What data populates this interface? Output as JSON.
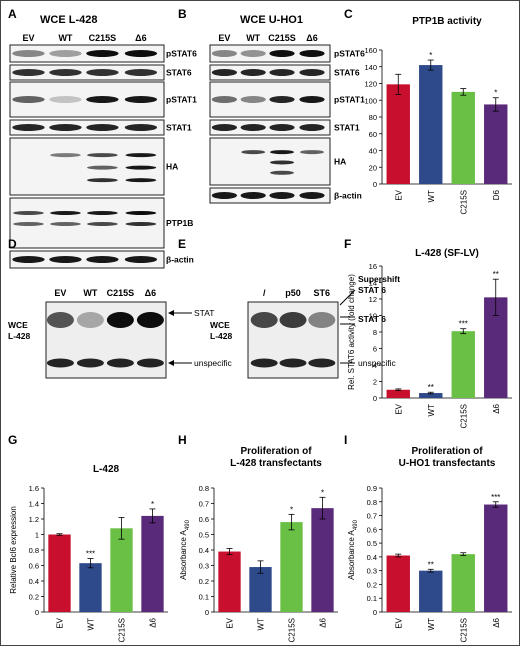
{
  "panels": {
    "A": {
      "letter": "A",
      "title": "WCE L-428",
      "lanes": [
        "EV",
        "WT",
        "C215S",
        "Δ6"
      ],
      "blots": [
        "pSTAT6",
        "STAT6",
        "pSTAT1",
        "STAT1",
        "HA",
        "PTP1B",
        "β-actin"
      ]
    },
    "B": {
      "letter": "B",
      "title": "WCE U-HO1",
      "lanes": [
        "EV",
        "WT",
        "C215S",
        "Δ6"
      ],
      "blots": [
        "pSTAT6",
        "STAT6",
        "pSTAT1",
        "STAT1",
        "HA",
        "β-actin"
      ]
    },
    "D": {
      "letter": "D",
      "lanes": [
        "EV",
        "WT",
        "C215S",
        "Δ6"
      ],
      "side_label": [
        "WCE",
        "L-428"
      ],
      "arrows": [
        "STAT",
        "unspecific"
      ]
    },
    "E": {
      "letter": "E",
      "lanes": [
        "/",
        "p50",
        "ST6"
      ],
      "side_label": [
        "WCE",
        "L-428"
      ],
      "arrows": [
        "Supershift",
        "STAT 6",
        "STAT 6",
        "unspecific"
      ]
    }
  },
  "chart_data": [
    {
      "panel": "C",
      "type": "bar",
      "title": "PTP1B activity",
      "categories": [
        "EV",
        "WT",
        "C215S",
        "D6"
      ],
      "values": [
        119,
        142,
        110,
        95
      ],
      "errors": [
        12,
        6,
        4,
        8
      ],
      "significance": [
        "",
        "*",
        "",
        "*"
      ],
      "colors": [
        "#c8102e",
        "#2e4a8b",
        "#6abf45",
        "#5a2a7a"
      ],
      "xlabel": "",
      "ylabel": "",
      "ylim": [
        0,
        160
      ],
      "yticks": [
        "0",
        "20",
        "40",
        "60",
        "80",
        "100",
        "120",
        "140",
        "160"
      ]
    },
    {
      "panel": "F",
      "type": "bar",
      "title": "L-428 (SF-LV)",
      "categories": [
        "EV",
        "WT",
        "C215S",
        "Δ6"
      ],
      "values": [
        1.0,
        0.6,
        8.1,
        12.2
      ],
      "errors": [
        0.1,
        0.1,
        0.3,
        2.2
      ],
      "significance": [
        "",
        "**",
        "***",
        "**"
      ],
      "colors": [
        "#c8102e",
        "#2e4a8b",
        "#6abf45",
        "#5a2a7a"
      ],
      "xlabel": "",
      "ylabel": "Rel. STAT6 activity (fold change)",
      "ylim": [
        0,
        16
      ],
      "yticks": [
        "0",
        "2",
        "4",
        "6",
        "8",
        "10",
        "12",
        "14",
        "16"
      ]
    },
    {
      "panel": "G",
      "type": "bar",
      "title": "L-428",
      "categories": [
        "EV",
        "WT",
        "C215S",
        "Δ6"
      ],
      "values": [
        1.0,
        0.63,
        1.08,
        1.24
      ],
      "errors": [
        0.01,
        0.06,
        0.14,
        0.09
      ],
      "significance": [
        "",
        "***",
        "",
        "*"
      ],
      "colors": [
        "#c8102e",
        "#2e4a8b",
        "#6abf45",
        "#5a2a7a"
      ],
      "xlabel": "",
      "ylabel": "Relative Bcl6 expression",
      "ylim": [
        0,
        1.6
      ],
      "yticks": [
        "0",
        "0.2",
        "0.4",
        "0.6",
        "0.8",
        "1",
        "1.2",
        "1.4",
        "1.6"
      ]
    },
    {
      "panel": "H",
      "type": "bar",
      "title": "Proliferation of",
      "title2": "L-428 transfectants",
      "categories": [
        "EV",
        "WT",
        "C215S",
        "Δ6"
      ],
      "values": [
        0.39,
        0.29,
        0.58,
        0.67
      ],
      "errors": [
        0.02,
        0.04,
        0.05,
        0.07
      ],
      "significance": [
        "",
        "",
        "*",
        "*"
      ],
      "colors": [
        "#c8102e",
        "#2e4a8b",
        "#6abf45",
        "#5a2a7a"
      ],
      "xlabel": "",
      "ylabel": "Absorbance A",
      "ylabel_sub": "490",
      "ylim": [
        0,
        0.8
      ],
      "yticks": [
        "0",
        "0.1",
        "0.2",
        "0.3",
        "0.4",
        "0.5",
        "0.6",
        "0.7",
        "0.8"
      ]
    },
    {
      "panel": "I",
      "type": "bar",
      "title": "Proliferation of",
      "title2": "U-HO1 transfectants",
      "categories": [
        "EV",
        "WT",
        "C215S",
        "Δ6"
      ],
      "values": [
        0.41,
        0.3,
        0.42,
        0.78
      ],
      "errors": [
        0.01,
        0.01,
        0.01,
        0.02
      ],
      "significance": [
        "",
        "**",
        "",
        "***"
      ],
      "colors": [
        "#c8102e",
        "#2e4a8b",
        "#6abf45",
        "#5a2a7a"
      ],
      "xlabel": "",
      "ylabel": "Absorbance A",
      "ylabel_sub": "490",
      "ylim": [
        0,
        0.9
      ],
      "yticks": [
        "0",
        "0.1",
        "0.2",
        "0.3",
        "0.4",
        "0.5",
        "0.6",
        "0.7",
        "0.8",
        "0.9"
      ]
    }
  ]
}
